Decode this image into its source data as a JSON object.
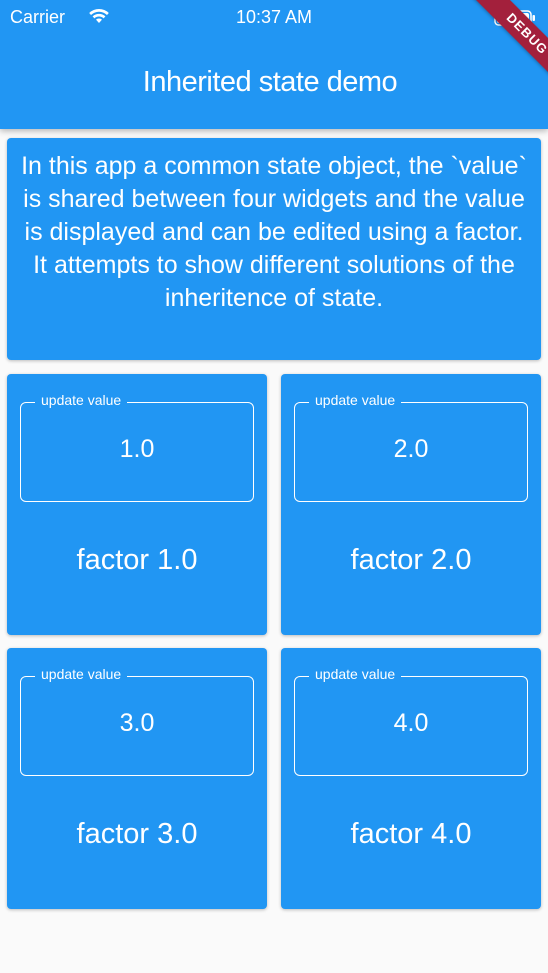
{
  "status_bar": {
    "carrier": "Carrier",
    "time": "10:37 AM",
    "wifi_icon": "wifi-icon",
    "battery_icon": "battery-icon"
  },
  "app_bar": {
    "title": "Inherited state demo",
    "debug_banner": "DEBUG"
  },
  "intro": {
    "text": "In this app a common state object, the `value` is shared between four widgets and the value is displayed and can be edited using a factor. It attempts to show different solutions of the inheritence of state."
  },
  "cards": [
    {
      "field_label": "update value",
      "value": "1.0",
      "factor": "factor 1.0"
    },
    {
      "field_label": "update value",
      "value": "2.0",
      "factor": "factor 2.0"
    },
    {
      "field_label": "update value",
      "value": "3.0",
      "factor": "factor 3.0"
    },
    {
      "field_label": "update value",
      "value": "4.0",
      "factor": "factor 4.0"
    }
  ],
  "colors": {
    "primary": "#2196f3",
    "background": "#fafafa",
    "debug_ribbon": "#a3203c",
    "text": "#ffffff"
  }
}
